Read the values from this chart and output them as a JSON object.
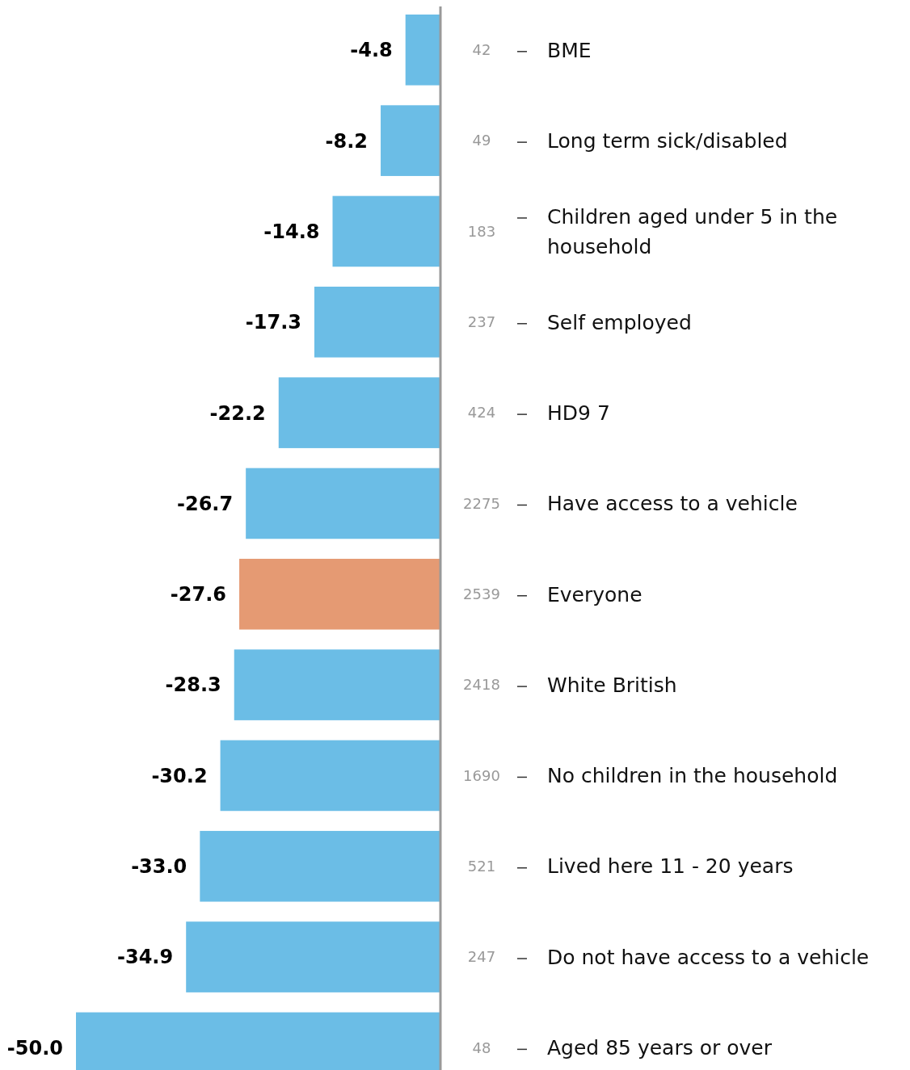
{
  "chart_data": {
    "type": "bar",
    "orientation": "horizontal",
    "categories": [
      "BME",
      "Long term sick/disabled",
      "Children aged under 5 in the household",
      "Self employed",
      "HD9 7",
      "Have access to a vehicle",
      "Everyone",
      "White British",
      "No children in the household",
      "Lived here 11 - 20 years",
      "Do not have access to a vehicle",
      "Aged 85 years or over"
    ],
    "values": [
      -4.8,
      -8.2,
      -14.8,
      -17.3,
      -22.2,
      -26.7,
      -27.6,
      -28.3,
      -30.2,
      -33.0,
      -34.9,
      -50.0
    ],
    "colors": [
      "#6bbde6",
      "#6bbde6",
      "#6bbde6",
      "#6bbde6",
      "#6bbde6",
      "#6bbde6",
      "#e59a73",
      "#6bbde6",
      "#6bbde6",
      "#6bbde6",
      "#6bbde6",
      "#6bbde6"
    ],
    "value_labels": [
      "-4.8",
      "-8.2",
      "-14.8",
      "-17.3",
      "-22.2",
      "-26.7",
      "-27.6",
      "-28.3",
      "-30.2",
      "-33.0",
      "-34.9",
      "-50.0"
    ],
    "annotations": [
      "42",
      "49",
      "183",
      "237",
      "424",
      "2275",
      "2539",
      "2418",
      "1690",
      "521",
      "247",
      "48"
    ]
  }
}
